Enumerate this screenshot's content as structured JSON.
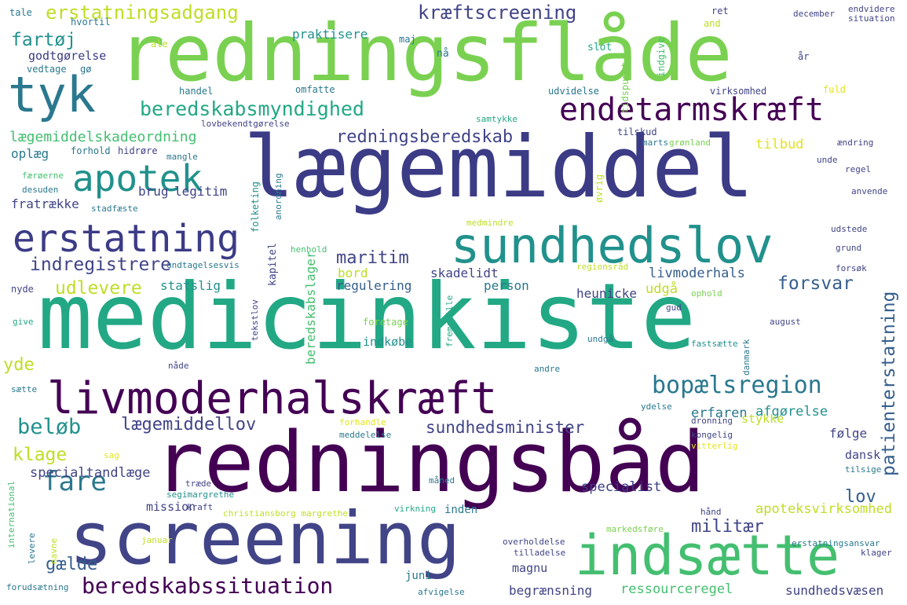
{
  "palette": {
    "dark_purple": "#440154",
    "indigo": "#3b3b86",
    "slate": "#414487",
    "blue": "#355e8d",
    "teal": "#2a788e",
    "cyan": "#21918c",
    "green_teal": "#22a884",
    "green": "#44bf70",
    "lime": "#7ad151",
    "yellow_green": "#bddf26",
    "yellow": "#e3e418"
  },
  "words": [
    {
      "text": "redningsflåde",
      "color": "lime"
    },
    {
      "text": "lægemiddel",
      "color": "indigo"
    },
    {
      "text": "medicinkiste",
      "color": "green_teal"
    },
    {
      "text": "redningsbåd",
      "color": "dark_purple"
    },
    {
      "text": "screening",
      "color": "slate"
    },
    {
      "text": "indsætte",
      "color": "green"
    },
    {
      "text": "livmoderhalskræft",
      "color": "dark_purple"
    },
    {
      "text": "sundhedslov",
      "color": "cyan"
    },
    {
      "text": "erstatning",
      "color": "indigo"
    },
    {
      "text": "tyk",
      "color": "teal"
    },
    {
      "text": "apotek",
      "color": "cyan"
    },
    {
      "text": "endetarmskræft",
      "color": "dark_purple"
    },
    {
      "text": "beredskabsmyndighed",
      "color": "green_teal"
    },
    {
      "text": "bopælsregion",
      "color": "teal"
    },
    {
      "text": "beredskabssituation",
      "color": "dark_purple"
    },
    {
      "text": "erstatningsadgang",
      "color": "yellow_green"
    },
    {
      "text": "kræftscreening",
      "color": "slate"
    },
    {
      "text": "redningsberedskab",
      "color": "slate"
    },
    {
      "text": "lægemiddelskadeordning",
      "color": "green"
    },
    {
      "text": "indregistrere",
      "color": "slate"
    },
    {
      "text": "maritim",
      "color": "slate"
    },
    {
      "text": "fartøj",
      "color": "cyan"
    },
    {
      "text": "fare",
      "color": "teal"
    },
    {
      "text": "beløb",
      "color": "cyan"
    },
    {
      "text": "klage",
      "color": "yellow_green"
    },
    {
      "text": "lægemiddellov",
      "color": "slate"
    },
    {
      "text": "sundhedsminister",
      "color": "slate"
    },
    {
      "text": "udlevere",
      "color": "yellow_green"
    },
    {
      "text": "forsvar",
      "color": "blue"
    },
    {
      "text": "patienterstatning",
      "color": "blue"
    },
    {
      "text": "lov",
      "color": "blue"
    },
    {
      "text": "militær",
      "color": "slate"
    },
    {
      "text": "gælde",
      "color": "blue"
    },
    {
      "text": "yde",
      "color": "yellow_green"
    },
    {
      "text": "specialtandlæge",
      "color": "slate"
    },
    {
      "text": "specialist",
      "color": "indigo"
    },
    {
      "text": "livmoderhals",
      "color": "blue"
    },
    {
      "text": "mission",
      "color": "slate"
    },
    {
      "text": "afgørelse",
      "color": "cyan"
    },
    {
      "text": "erfaren",
      "color": "teal"
    },
    {
      "text": "stykke",
      "color": "yellow_green"
    },
    {
      "text": "ressourceregel",
      "color": "green"
    },
    {
      "text": "sundhedsvæsen",
      "color": "slate"
    },
    {
      "text": "begrænsning",
      "color": "slate"
    },
    {
      "text": "apoteksvirksomhed",
      "color": "yellow_green"
    },
    {
      "text": "regulering",
      "color": "blue"
    },
    {
      "text": "heunicke",
      "color": "slate"
    },
    {
      "text": "skadelidt",
      "color": "slate"
    },
    {
      "text": "person",
      "color": "teal"
    },
    {
      "text": "udgå",
      "color": "yellow_green"
    },
    {
      "text": "bord",
      "color": "yellow_green"
    },
    {
      "text": "statslig",
      "color": "cyan"
    },
    {
      "text": "beredskabslager",
      "color": "green"
    },
    {
      "text": "praktisere",
      "color": "cyan"
    },
    {
      "text": "godtgørelse",
      "color": "indigo"
    },
    {
      "text": "oplæg",
      "color": "teal"
    },
    {
      "text": "fratrække",
      "color": "slate"
    },
    {
      "text": "brug",
      "color": "slate"
    },
    {
      "text": "legitim",
      "color": "slate"
    },
    {
      "text": "indkøbe",
      "color": "cyan"
    },
    {
      "text": "tilbud",
      "color": "yellow"
    },
    {
      "text": "dansk",
      "color": "slate"
    },
    {
      "text": "følge",
      "color": "slate"
    },
    {
      "text": "magnu",
      "color": "slate"
    },
    {
      "text": "juni",
      "color": "teal"
    },
    {
      "text": "inden",
      "color": "teal"
    },
    {
      "text": "kapitel",
      "color": "slate"
    },
    {
      "text": "tale",
      "color": "teal"
    },
    {
      "text": "hvortil",
      "color": "teal"
    },
    {
      "text": "vedtage",
      "color": "teal"
    },
    {
      "text": "gø",
      "color": "teal"
    },
    {
      "text": "ale",
      "color": "yellow_green"
    },
    {
      "text": "maj",
      "color": "teal"
    },
    {
      "text": "nå",
      "color": "teal"
    },
    {
      "text": "slot",
      "color": "green_teal"
    },
    {
      "text": "tidspunkt",
      "color": "lime"
    },
    {
      "text": "indgive",
      "color": "green"
    },
    {
      "text": "ret",
      "color": "slate"
    },
    {
      "text": "and",
      "color": "yellow_green"
    },
    {
      "text": "december",
      "color": "slate"
    },
    {
      "text": "endvidere",
      "color": "slate"
    },
    {
      "text": "situation",
      "color": "slate"
    },
    {
      "text": "år",
      "color": "slate"
    },
    {
      "text": "handel",
      "color": "teal"
    },
    {
      "text": "omfatte",
      "color": "teal"
    },
    {
      "text": "udvidelse",
      "color": "teal"
    },
    {
      "text": "virksomhed",
      "color": "slate"
    },
    {
      "text": "fuld",
      "color": "yellow"
    },
    {
      "text": "lovbekendtgørelse",
      "color": "slate"
    },
    {
      "text": "samtykke",
      "color": "green_teal"
    },
    {
      "text": "tilskud",
      "color": "slate"
    },
    {
      "text": "forhold",
      "color": "teal"
    },
    {
      "text": "hidrøre",
      "color": "slate"
    },
    {
      "text": "mangle",
      "color": "teal"
    },
    {
      "text": "færøerne",
      "color": "green"
    },
    {
      "text": "desuden",
      "color": "teal"
    },
    {
      "text": "stadfæste",
      "color": "teal"
    },
    {
      "text": "anordning",
      "color": "teal"
    },
    {
      "text": "folketing",
      "color": "cyan"
    },
    {
      "text": "øvrig",
      "color": "yellow_green"
    },
    {
      "text": "marts",
      "color": "teal"
    },
    {
      "text": "grønland",
      "color": "lime"
    },
    {
      "text": "ændring",
      "color": "slate"
    },
    {
      "text": "unde",
      "color": "slate"
    },
    {
      "text": "regel",
      "color": "slate"
    },
    {
      "text": "anvende",
      "color": "slate"
    },
    {
      "text": "henhold",
      "color": "green"
    },
    {
      "text": "medmindre",
      "color": "yellow_green"
    },
    {
      "text": "udstede",
      "color": "slate"
    },
    {
      "text": "grund",
      "color": "slate"
    },
    {
      "text": "undtagelsesvis",
      "color": "teal"
    },
    {
      "text": "regionsråd",
      "color": "yellow_green"
    },
    {
      "text": "nyde",
      "color": "slate"
    },
    {
      "text": "give",
      "color": "green_teal"
    },
    {
      "text": "tekstlov",
      "color": "slate"
    },
    {
      "text": "foretage",
      "color": "lime"
    },
    {
      "text": "fremstille",
      "color": "green_teal"
    },
    {
      "text": "ophold",
      "color": "lime"
    },
    {
      "text": "gud",
      "color": "slate"
    },
    {
      "text": "august",
      "color": "slate"
    },
    {
      "text": "undgå",
      "color": "teal"
    },
    {
      "text": "fastsætte",
      "color": "cyan"
    },
    {
      "text": "danmark",
      "color": "teal"
    },
    {
      "text": "andre",
      "color": "teal"
    },
    {
      "text": "nåde",
      "color": "slate"
    },
    {
      "text": "sætte",
      "color": "teal"
    },
    {
      "text": "forsøk",
      "color": "slate"
    },
    {
      "text": "ydelse",
      "color": "teal"
    },
    {
      "text": "forhandle",
      "color": "yellow"
    },
    {
      "text": "meddelelse",
      "color": "teal"
    },
    {
      "text": "dronning",
      "color": "slate"
    },
    {
      "text": "kongelig",
      "color": "slate"
    },
    {
      "text": "vitterlig",
      "color": "yellow"
    },
    {
      "text": "sag",
      "color": "yellow"
    },
    {
      "text": "træde",
      "color": "slate"
    },
    {
      "text": "segimargrethe",
      "color": "cyan"
    },
    {
      "text": "kraft",
      "color": "slate"
    },
    {
      "text": "international",
      "color": "green"
    },
    {
      "text": "christiansborg margrethe",
      "color": "yellow_green"
    },
    {
      "text": "virkning",
      "color": "green_teal"
    },
    {
      "text": "måned",
      "color": "teal"
    },
    {
      "text": "tilsige",
      "color": "teal"
    },
    {
      "text": "hånd",
      "color": "slate"
    },
    {
      "text": "markedsføre",
      "color": "lime"
    },
    {
      "text": "erstatningsansvar",
      "color": "teal"
    },
    {
      "text": "klager",
      "color": "slate"
    },
    {
      "text": "levere",
      "color": "teal"
    },
    {
      "text": "navne",
      "color": "yellow_green"
    },
    {
      "text": "januar",
      "color": "yellow_green"
    },
    {
      "text": "overholdelse",
      "color": "slate"
    },
    {
      "text": "tilladelse",
      "color": "slate"
    },
    {
      "text": "forudsætning",
      "color": "teal"
    },
    {
      "text": "afvigelse",
      "color": "teal"
    }
  ]
}
